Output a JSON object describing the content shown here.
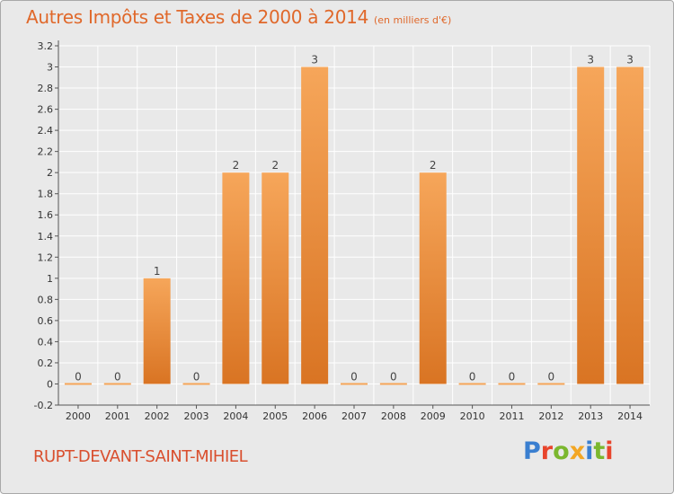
{
  "title": "Autres Impôts et Taxes de 2000 à 2014",
  "subtitle": "(en milliers d'€)",
  "commune": "RUPT-DEVANT-SAINT-MIHIEL",
  "logo": {
    "text": "Proxiti",
    "letter_colors": [
      "#3a7fd0",
      "#e8452c",
      "#7bb72e",
      "#f3a623",
      "#3a7fd0",
      "#7bb72e",
      "#e8452c"
    ]
  },
  "colors": {
    "title": "#e0682a",
    "bar_light": "#f6a65a",
    "bar_dark": "#d97423",
    "grid": "#ffffff",
    "axis": "#555555",
    "plot_bg": "#e9e9e9"
  },
  "chart_data": {
    "type": "bar",
    "categories": [
      "2000",
      "2001",
      "2002",
      "2003",
      "2004",
      "2005",
      "2006",
      "2007",
      "2008",
      "2009",
      "2010",
      "2011",
      "2012",
      "2013",
      "2014"
    ],
    "values": [
      0,
      0,
      1,
      0,
      2,
      2,
      3,
      0,
      0,
      2,
      0,
      0,
      0,
      3,
      3
    ],
    "value_labels": [
      "0",
      "0",
      "1",
      "0",
      "2",
      "2",
      "3",
      "0",
      "0",
      "2",
      "0",
      "0",
      "0",
      "3",
      "3"
    ],
    "y_ticks": [
      "-0.2",
      "0",
      "0.2",
      "0.4",
      "0.6",
      "0.8",
      "1",
      "1.2",
      "1.4",
      "1.6",
      "1.8",
      "2",
      "2.2",
      "2.4",
      "2.6",
      "2.8",
      "3",
      "3.2"
    ],
    "ylim": [
      -0.2,
      3.2
    ],
    "grid": true
  }
}
